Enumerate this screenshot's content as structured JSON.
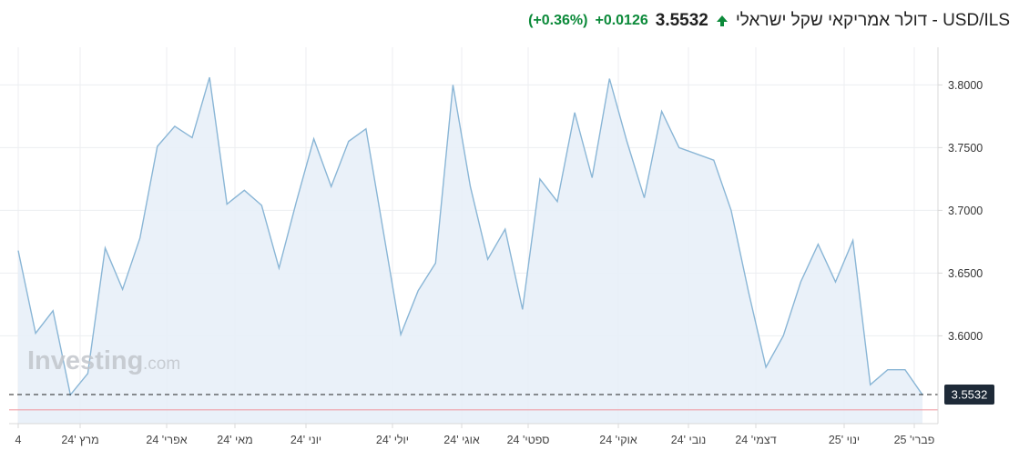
{
  "header": {
    "title": "USD/ILS - דולר אמריקאי שקל ישראלי",
    "price": "3.5532",
    "change": "+0.0126",
    "change_pct": "(+0.36%)",
    "direction_icon": "arrow-up-icon",
    "up_color": "#0c8a3a"
  },
  "watermark": {
    "brand": "Investing",
    "suffix": ".com"
  },
  "chart_data": {
    "type": "area",
    "title": "",
    "xlabel": "",
    "ylabel": "",
    "ylim": [
      3.53,
      3.83
    ],
    "yticks": [
      "3.6000",
      "3.6500",
      "3.7000",
      "3.7500",
      "3.8000"
    ],
    "ytick_values": [
      3.6,
      3.65,
      3.7,
      3.75,
      3.8
    ],
    "xticks": [
      "4",
      "מרץ '24",
      "אפרי' 24",
      "מאי '24",
      "יוני '24",
      "יולי '24",
      "אוגי '24",
      "ספטי' 24",
      "אוקי' 24",
      "נובי '24",
      "דצמי' 24",
      "ינוי '25",
      "פברי' 25"
    ],
    "current_value_label": "3.5532",
    "current_value": 3.5532,
    "reference_line": 3.541,
    "series": [
      {
        "values": [
          3.668,
          3.602,
          3.62,
          3.553,
          3.57,
          3.67,
          3.637,
          3.678,
          3.751,
          3.767,
          3.758,
          3.806,
          3.705,
          3.716,
          3.704,
          3.654,
          3.707,
          3.757,
          3.719,
          3.755,
          3.765,
          3.683,
          3.601,
          3.636,
          3.658,
          3.8,
          3.719,
          3.661,
          3.685,
          3.621,
          3.725,
          3.707,
          3.778,
          3.726,
          3.805,
          3.755,
          3.71,
          3.779,
          3.75,
          3.745,
          3.74,
          3.7,
          3.635,
          3.575,
          3.6,
          3.643,
          3.673,
          3.643,
          3.676,
          3.561,
          3.573,
          3.573,
          3.553
        ]
      }
    ],
    "colors": {
      "line": "#8ab6d6",
      "fill": "#e8f0f8",
      "grid": "#eceef1",
      "axis": "#d8d8d8",
      "reference": "#f0a0a8",
      "price_box": "#1e2a38"
    },
    "grid": true
  }
}
